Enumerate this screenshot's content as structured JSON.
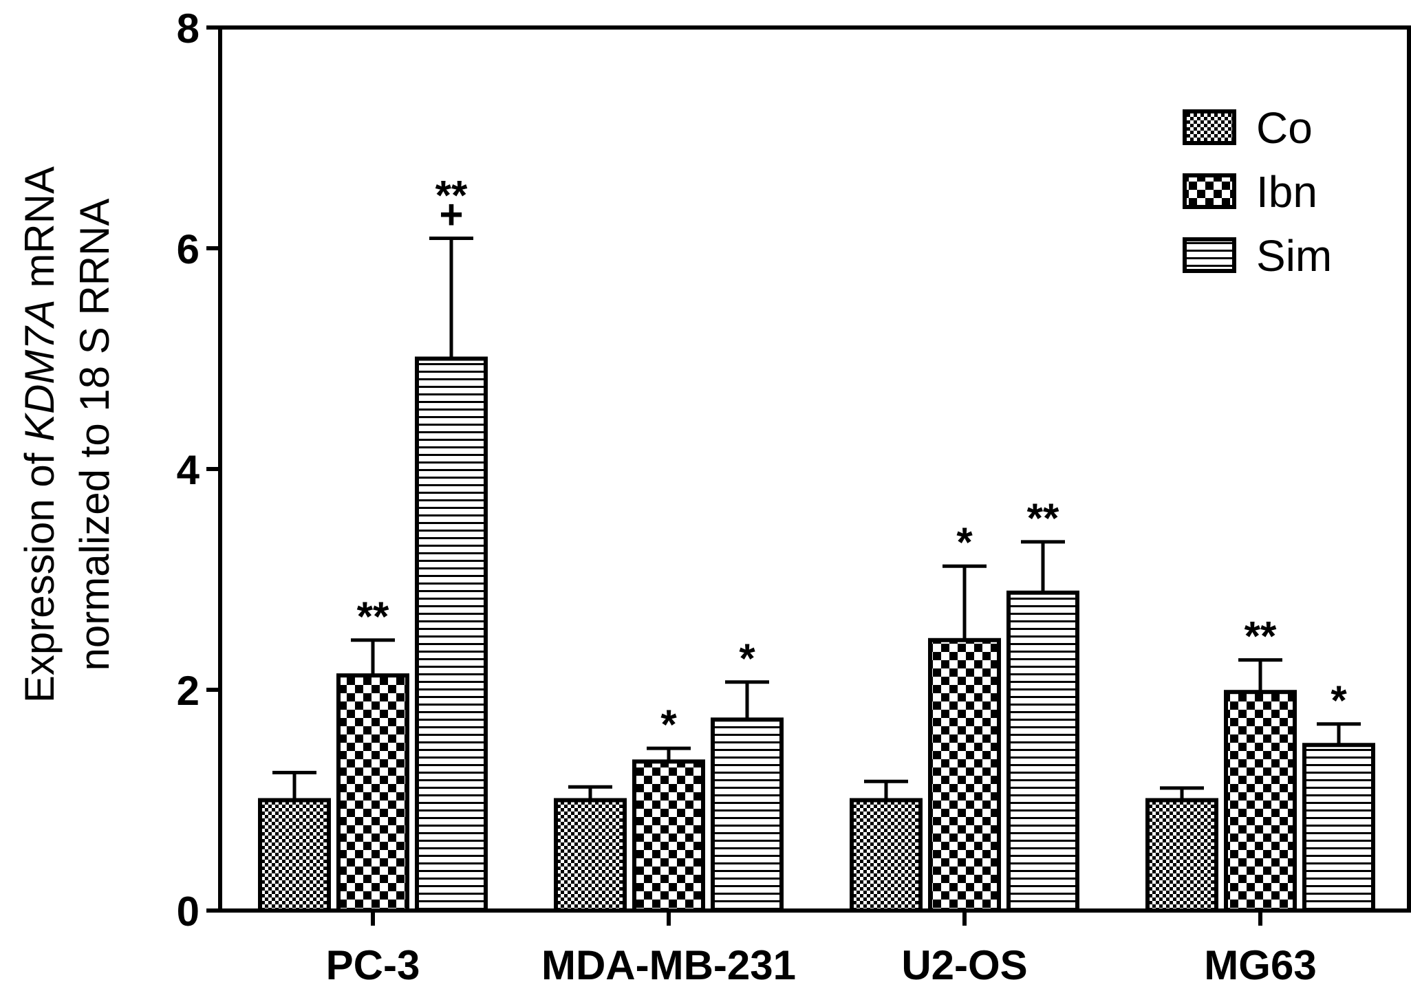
{
  "colors": {
    "ink": "#000000",
    "background": "#ffffff"
  },
  "chart_data": {
    "type": "bar",
    "title": "",
    "xlabel": "",
    "ylabel": {
      "line1_prefix": "Expression of ",
      "line1_gene": "KDM7A",
      "line1_suffix": " mRNA",
      "line2": "normalized to 18 S RRNA"
    },
    "ylim": [
      0,
      8
    ],
    "yticks": [
      "0",
      "2",
      "4",
      "6",
      "8"
    ],
    "categories": [
      "PC-3",
      "MDA-MB-231",
      "U2-OS",
      "MG63"
    ],
    "series": [
      {
        "name": "Co",
        "pattern": "fine-check",
        "values": [
          1.0,
          1.0,
          1.0,
          1.0
        ],
        "errors": [
          0.25,
          0.12,
          0.17,
          0.11
        ],
        "annotations": [
          [],
          [],
          [],
          []
        ]
      },
      {
        "name": "Ibn",
        "pattern": "checkerboard",
        "values": [
          2.13,
          1.35,
          2.45,
          1.98
        ],
        "errors": [
          0.32,
          0.12,
          0.67,
          0.29
        ],
        "annotations": [
          [
            "**"
          ],
          [
            "*"
          ],
          [
            "*"
          ],
          [
            "**"
          ]
        ]
      },
      {
        "name": "Sim",
        "pattern": "horizontal-lines",
        "values": [
          5.0,
          1.73,
          2.88,
          1.5
        ],
        "errors": [
          1.09,
          0.34,
          0.46,
          0.19
        ],
        "annotations": [
          [
            "+",
            "**"
          ],
          [
            "*"
          ],
          [
            "**"
          ],
          [
            "*"
          ]
        ]
      }
    ],
    "legend": {
      "position": "top-right",
      "entries": [
        "Co",
        "Ibn",
        "Sim"
      ]
    },
    "grid": false
  }
}
